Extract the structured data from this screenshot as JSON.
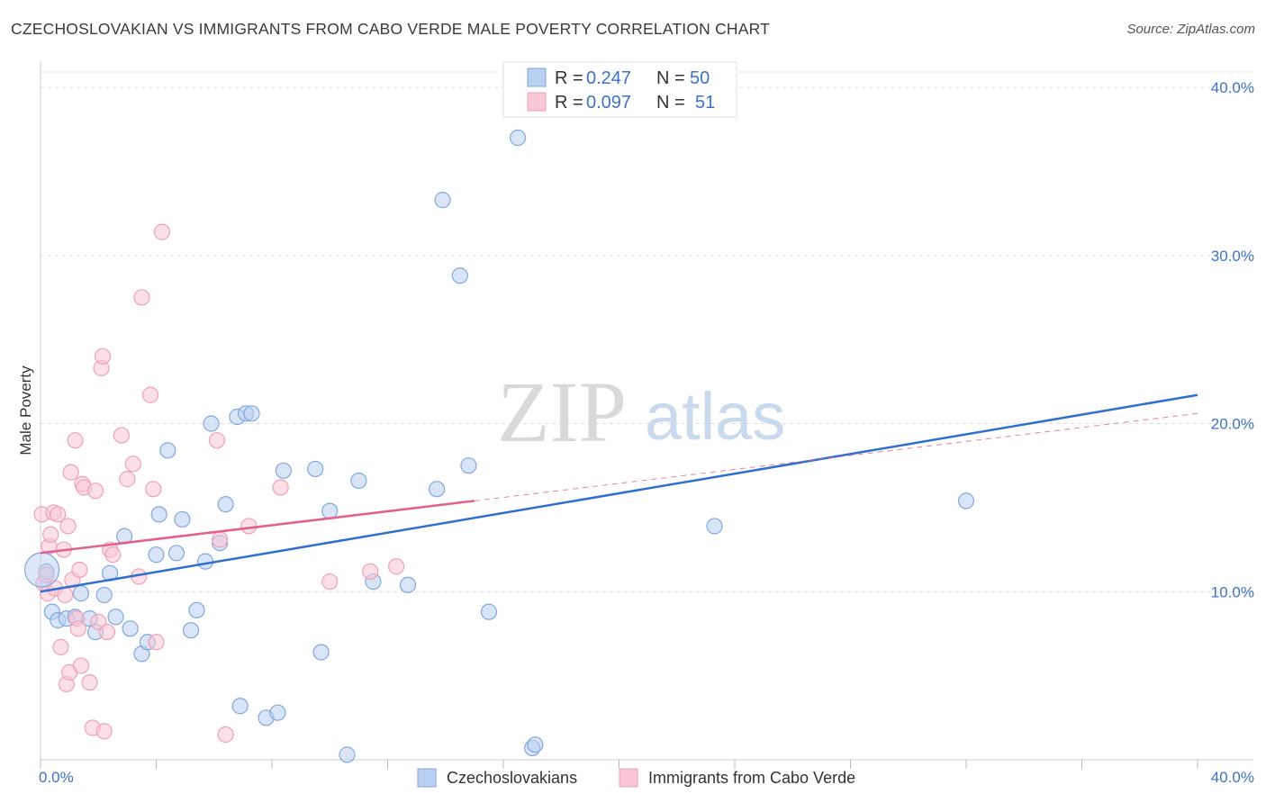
{
  "chart_data": {
    "type": "scatter",
    "title": "CZECHOSLOVAKIAN VS IMMIGRANTS FROM CABO VERDE MALE POVERTY CORRELATION CHART",
    "source": "Source: ZipAtlas.com",
    "xlabel": "",
    "ylabel": "Male Poverty",
    "xlim": [
      0,
      40
    ],
    "ylim": [
      0,
      40
    ],
    "x_tick_labels": [
      "0.0%",
      "40.0%"
    ],
    "y_ticks": [
      10,
      20,
      30,
      40
    ],
    "y_tick_labels": [
      "10.0%",
      "20.0%",
      "30.0%",
      "40.0%"
    ],
    "grid": true,
    "watermark": {
      "zip": "ZIP",
      "atlas": "atlas"
    },
    "legend_top": [
      {
        "r_label": "R =",
        "r_value": "0.247",
        "n_label": "N =",
        "n_value": "50"
      },
      {
        "r_label": "R =",
        "r_value": "0.097",
        "n_label": "N =",
        "n_value": "51"
      }
    ],
    "series": [
      {
        "name": "Czechoslovakians",
        "color": "#7fa8e0",
        "fill": "#b9d0f0",
        "line_color": "#2e6fd0",
        "trend": {
          "x0": 0,
          "y0": 10.0,
          "x1": 40,
          "y1": 21.7,
          "dashed_to": null
        },
        "points": [
          [
            0.2,
            11.2
          ],
          [
            0.4,
            8.8
          ],
          [
            0.6,
            8.3
          ],
          [
            0.9,
            8.4
          ],
          [
            1.2,
            8.5
          ],
          [
            1.4,
            9.9
          ],
          [
            1.7,
            8.4
          ],
          [
            1.9,
            7.6
          ],
          [
            2.2,
            9.8
          ],
          [
            2.4,
            11.1
          ],
          [
            2.6,
            8.5
          ],
          [
            2.9,
            13.3
          ],
          [
            3.1,
            7.8
          ],
          [
            3.5,
            6.3
          ],
          [
            3.7,
            7.0
          ],
          [
            4.0,
            12.2
          ],
          [
            4.1,
            14.6
          ],
          [
            4.4,
            18.4
          ],
          [
            4.7,
            12.3
          ],
          [
            4.9,
            14.3
          ],
          [
            5.2,
            7.7
          ],
          [
            5.4,
            8.9
          ],
          [
            5.7,
            11.8
          ],
          [
            5.9,
            20.0
          ],
          [
            6.2,
            12.9
          ],
          [
            6.4,
            15.2
          ],
          [
            6.8,
            20.4
          ],
          [
            7.1,
            20.6
          ],
          [
            7.3,
            20.6
          ],
          [
            6.9,
            3.2
          ],
          [
            7.8,
            2.5
          ],
          [
            8.2,
            2.8
          ],
          [
            8.4,
            17.2
          ],
          [
            9.5,
            17.3
          ],
          [
            10.0,
            14.8
          ],
          [
            9.7,
            6.4
          ],
          [
            10.6,
            0.3
          ],
          [
            11.0,
            16.6
          ],
          [
            11.5,
            10.6
          ],
          [
            12.7,
            10.4
          ],
          [
            13.7,
            16.1
          ],
          [
            13.9,
            33.3
          ],
          [
            14.5,
            28.8
          ],
          [
            14.8,
            17.5
          ],
          [
            15.5,
            8.8
          ],
          [
            16.5,
            37.0
          ],
          [
            17.0,
            0.7
          ],
          [
            17.1,
            0.9
          ],
          [
            23.3,
            13.9
          ],
          [
            32.0,
            15.4
          ]
        ]
      },
      {
        "name": "Immigrants from Cabo Verde",
        "color": "#f0a0b8",
        "fill": "#f8c6d4",
        "line_color": "#e06090",
        "trend": {
          "x0": 0,
          "y0": 12.3,
          "x1": 15.0,
          "y1": 15.4,
          "dashed_to": {
            "x": 40,
            "y": 20.6
          }
        },
        "points": [
          [
            0.05,
            14.6
          ],
          [
            0.1,
            10.5
          ],
          [
            0.2,
            11.0
          ],
          [
            0.25,
            9.9
          ],
          [
            0.3,
            12.7
          ],
          [
            0.35,
            13.4
          ],
          [
            0.45,
            14.7
          ],
          [
            0.5,
            10.2
          ],
          [
            0.6,
            14.6
          ],
          [
            0.7,
            6.7
          ],
          [
            0.8,
            12.5
          ],
          [
            0.85,
            9.8
          ],
          [
            0.9,
            4.5
          ],
          [
            0.95,
            13.9
          ],
          [
            1.0,
            5.2
          ],
          [
            1.05,
            17.1
          ],
          [
            1.1,
            10.7
          ],
          [
            1.2,
            19.0
          ],
          [
            1.25,
            8.4
          ],
          [
            1.3,
            7.8
          ],
          [
            1.35,
            11.3
          ],
          [
            1.4,
            5.6
          ],
          [
            1.45,
            16.4
          ],
          [
            1.5,
            16.2
          ],
          [
            1.7,
            4.6
          ],
          [
            1.8,
            1.9
          ],
          [
            1.9,
            16.0
          ],
          [
            2.0,
            8.2
          ],
          [
            2.1,
            23.3
          ],
          [
            2.15,
            24.0
          ],
          [
            2.2,
            1.7
          ],
          [
            2.3,
            7.6
          ],
          [
            2.4,
            12.5
          ],
          [
            2.5,
            12.2
          ],
          [
            2.8,
            19.3
          ],
          [
            3.0,
            16.7
          ],
          [
            3.2,
            17.6
          ],
          [
            3.4,
            10.9
          ],
          [
            3.5,
            27.5
          ],
          [
            3.8,
            21.7
          ],
          [
            3.9,
            16.1
          ],
          [
            4.0,
            7.0
          ],
          [
            4.2,
            31.4
          ],
          [
            6.1,
            19.0
          ],
          [
            6.2,
            13.1
          ],
          [
            6.4,
            1.5
          ],
          [
            7.2,
            13.9
          ],
          [
            8.3,
            16.2
          ],
          [
            10.0,
            10.6
          ],
          [
            11.4,
            11.2
          ],
          [
            12.3,
            11.5
          ]
        ]
      }
    ]
  }
}
